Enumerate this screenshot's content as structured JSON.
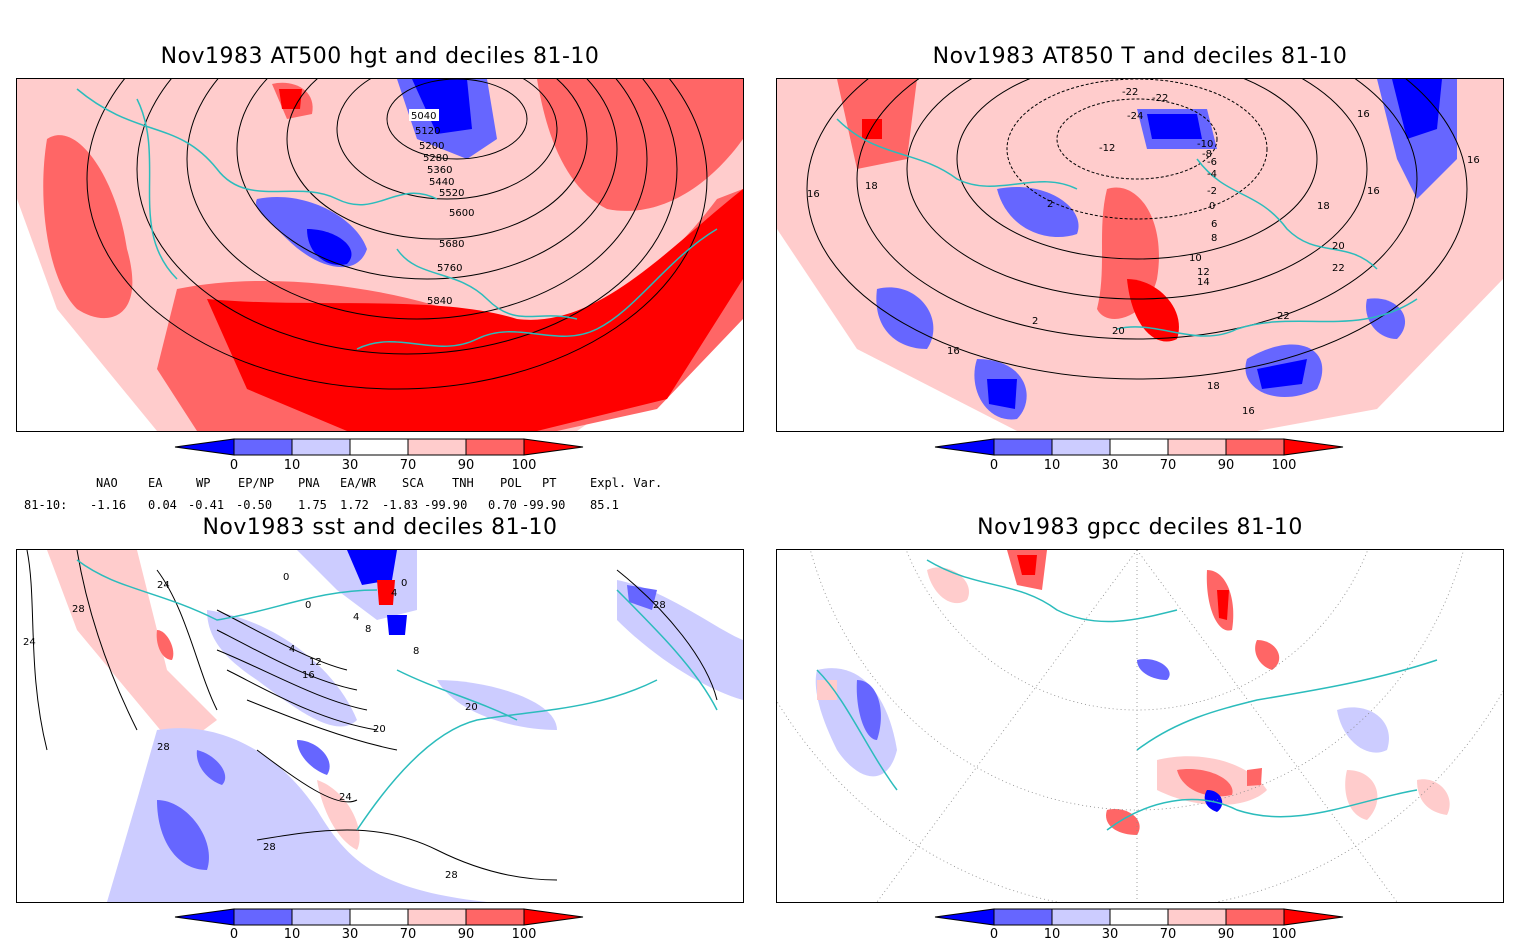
{
  "panels": {
    "p1": {
      "title": "Nov1983 AT500 hgt and deciles 81-10",
      "labels": [
        "5040",
        "5120",
        "5200",
        "5280",
        "5360",
        "5440",
        "5520",
        "5600",
        "5680",
        "5760",
        "5840"
      ]
    },
    "p2": {
      "title": "Nov1983 AT850 T and deciles 81-10",
      "labels": [
        "-22",
        "-22",
        "-24",
        "-12",
        "-10",
        "-8",
        "-6",
        "-4",
        "-2",
        "0",
        "2",
        "6",
        "8",
        "10",
        "12",
        "14",
        "16",
        "16",
        "16",
        "16",
        "16",
        "18",
        "18",
        "18",
        "20",
        "20",
        "22",
        "22",
        "2",
        "16"
      ]
    },
    "p3": {
      "title": "Nov1983 sst and deciles 81-10",
      "labels": [
        "24",
        "24",
        "28",
        "28",
        "0",
        "0",
        "4",
        "4",
        "8",
        "8",
        "12",
        "16",
        "20",
        "20",
        "24",
        "28",
        "28",
        "28",
        "0",
        "4"
      ]
    },
    "p4": {
      "title": "Nov1983 gpcc deciles 81-10",
      "labels": []
    }
  },
  "colorbar": {
    "ticks": [
      "0",
      "10",
      "30",
      "70",
      "90",
      "100"
    ],
    "colors": [
      "#0000ff",
      "#6666ff",
      "#ccccff",
      "#ffffff",
      "#ffcccc",
      "#ff6666",
      "#ff0000"
    ]
  },
  "indices": {
    "headers": [
      "NAO",
      "EA",
      "WP",
      "EP/NP",
      "PNA",
      "EA/WR",
      "SCA",
      "TNH",
      "POL",
      "PT",
      "Expl. Var."
    ],
    "row_label": "81-10:",
    "values": [
      "-1.16",
      "0.04",
      "-0.41",
      "-0.50",
      "1.75",
      "1.72",
      "-1.83",
      "-99.90",
      "0.70",
      "-99.90",
      "85.1"
    ]
  }
}
